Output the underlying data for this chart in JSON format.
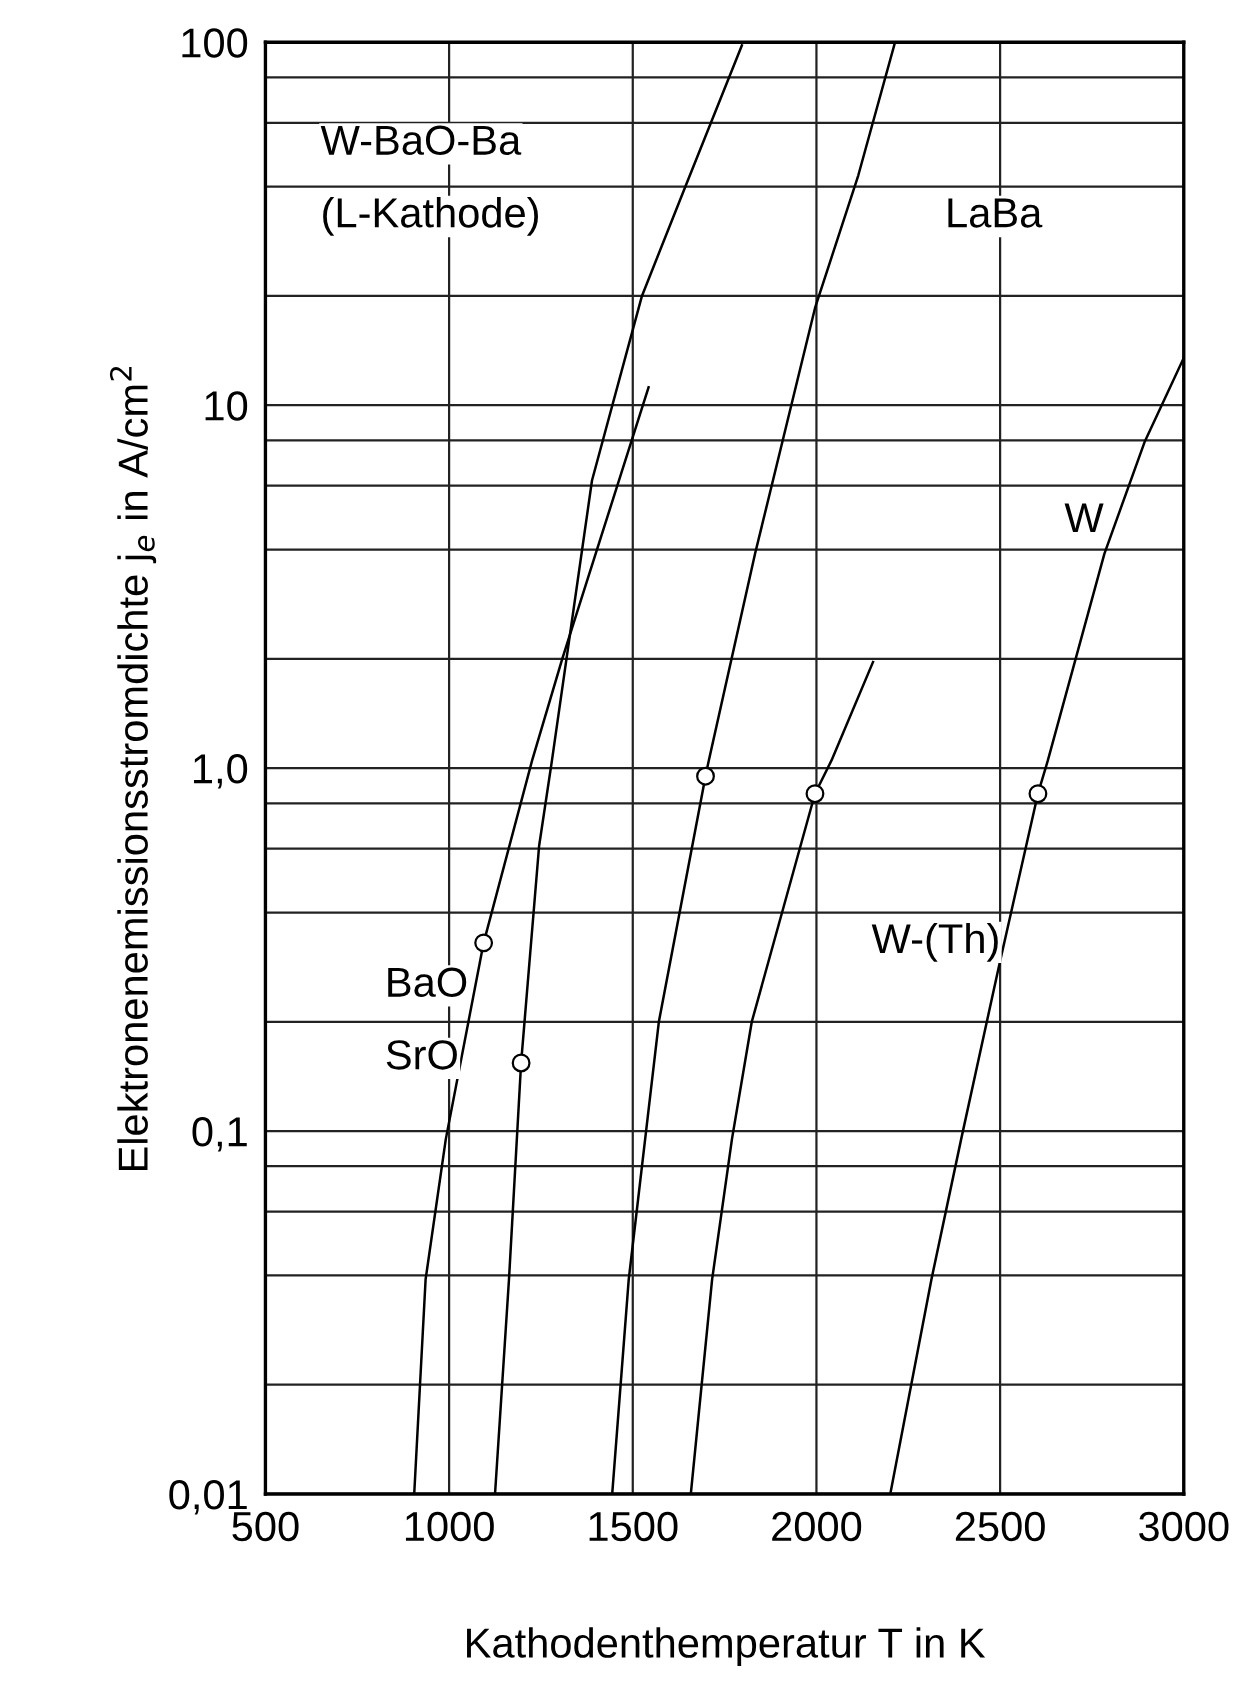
{
  "chart_data": {
    "type": "line",
    "xlabel": "Kathodenthemperatur T in K",
    "ylabel": "Elektronenemissionsstromdichte j$_{e}$ in A/cm$^{2}$",
    "log": "y",
    "grid": true,
    "marker": "none",
    "line_style": "solid",
    "xlim": [
      500,
      3000
    ],
    "xticks": [
      500,
      1000,
      1500,
      2000,
      2500,
      3000
    ],
    "ylim": [
      0.01,
      100
    ],
    "yticks": [
      {
        "value": 0.01,
        "label": "0,01"
      },
      {
        "value": 0.02,
        "label": null
      },
      {
        "value": 0.04,
        "label": null
      },
      {
        "value": 0.06,
        "label": null
      },
      {
        "value": 0.08,
        "label": null
      },
      {
        "value": 0.1,
        "label": "0,1"
      },
      {
        "value": 0.2,
        "label": null
      },
      {
        "value": 0.4,
        "label": null
      },
      {
        "value": 0.6,
        "label": null
      },
      {
        "value": 0.8,
        "label": null
      },
      {
        "value": 1,
        "label": "1,0"
      },
      {
        "value": 2,
        "label": null
      },
      {
        "value": 4,
        "label": null
      },
      {
        "value": 6,
        "label": null
      },
      {
        "value": 8,
        "label": null
      },
      10,
      {
        "value": 20,
        "label": null
      },
      {
        "value": 40,
        "label": null
      },
      {
        "value": 60,
        "label": null
      },
      {
        "value": 80,
        "label": null
      },
      100
    ],
    "series": [
      {
        "color": "#000000",
        "x": [
          905,
          936,
          991,
          1094,
          1226,
          1308,
          1543
        ],
        "values": [
          0.01,
          0.039,
          0.095,
          0.33,
          1.05,
          2.0,
          11.2
        ]
      },
      {
        "color": "#000000",
        "x": [
          1125,
          1163,
          1196,
          1245,
          1280,
          1389,
          1525,
          1643,
          1797
        ],
        "values": [
          0.01,
          0.039,
          0.154,
          0.61,
          1.05,
          6.2,
          20,
          40,
          98
        ]
      },
      {
        "color": "#000000",
        "x": [
          1444,
          1489,
          1571,
          1698,
          1707,
          1833,
          1996,
          2114,
          2214
        ],
        "values": [
          0.01,
          0.039,
          0.2,
          0.95,
          1.05,
          3.9,
          18.5,
          43,
          100
        ]
      },
      {
        "color": "#000000",
        "x": [
          1658,
          1716,
          1770,
          1824,
          1996,
          2041,
          2154
        ],
        "values": [
          0.01,
          0.039,
          0.095,
          0.2,
          0.85,
          1.05,
          1.96
        ]
      },
      {
        "color": "#000000",
        "x": [
          2201,
          2313,
          2394,
          2497,
          2603,
          2630,
          2784,
          2893,
          3000
        ],
        "values": [
          0.01,
          0.039,
          0.095,
          0.285,
          0.85,
          1.05,
          3.9,
          7.9,
          13.5
        ]
      },
      {
        "type": "scatter",
        "marker": "circle",
        "color": "#000000",
        "x": [
          1094,
          1196,
          1698,
          1996,
          2603
        ],
        "values": [
          0.33,
          0.154,
          0.95,
          0.85,
          0.85
        ]
      }
    ],
    "annotations": [
      "W-BaO-Ba",
      "(L-Kathode)",
      "LaBa",
      "W",
      "W-(Th)",
      "BaO",
      "SrO"
    ]
  }
}
